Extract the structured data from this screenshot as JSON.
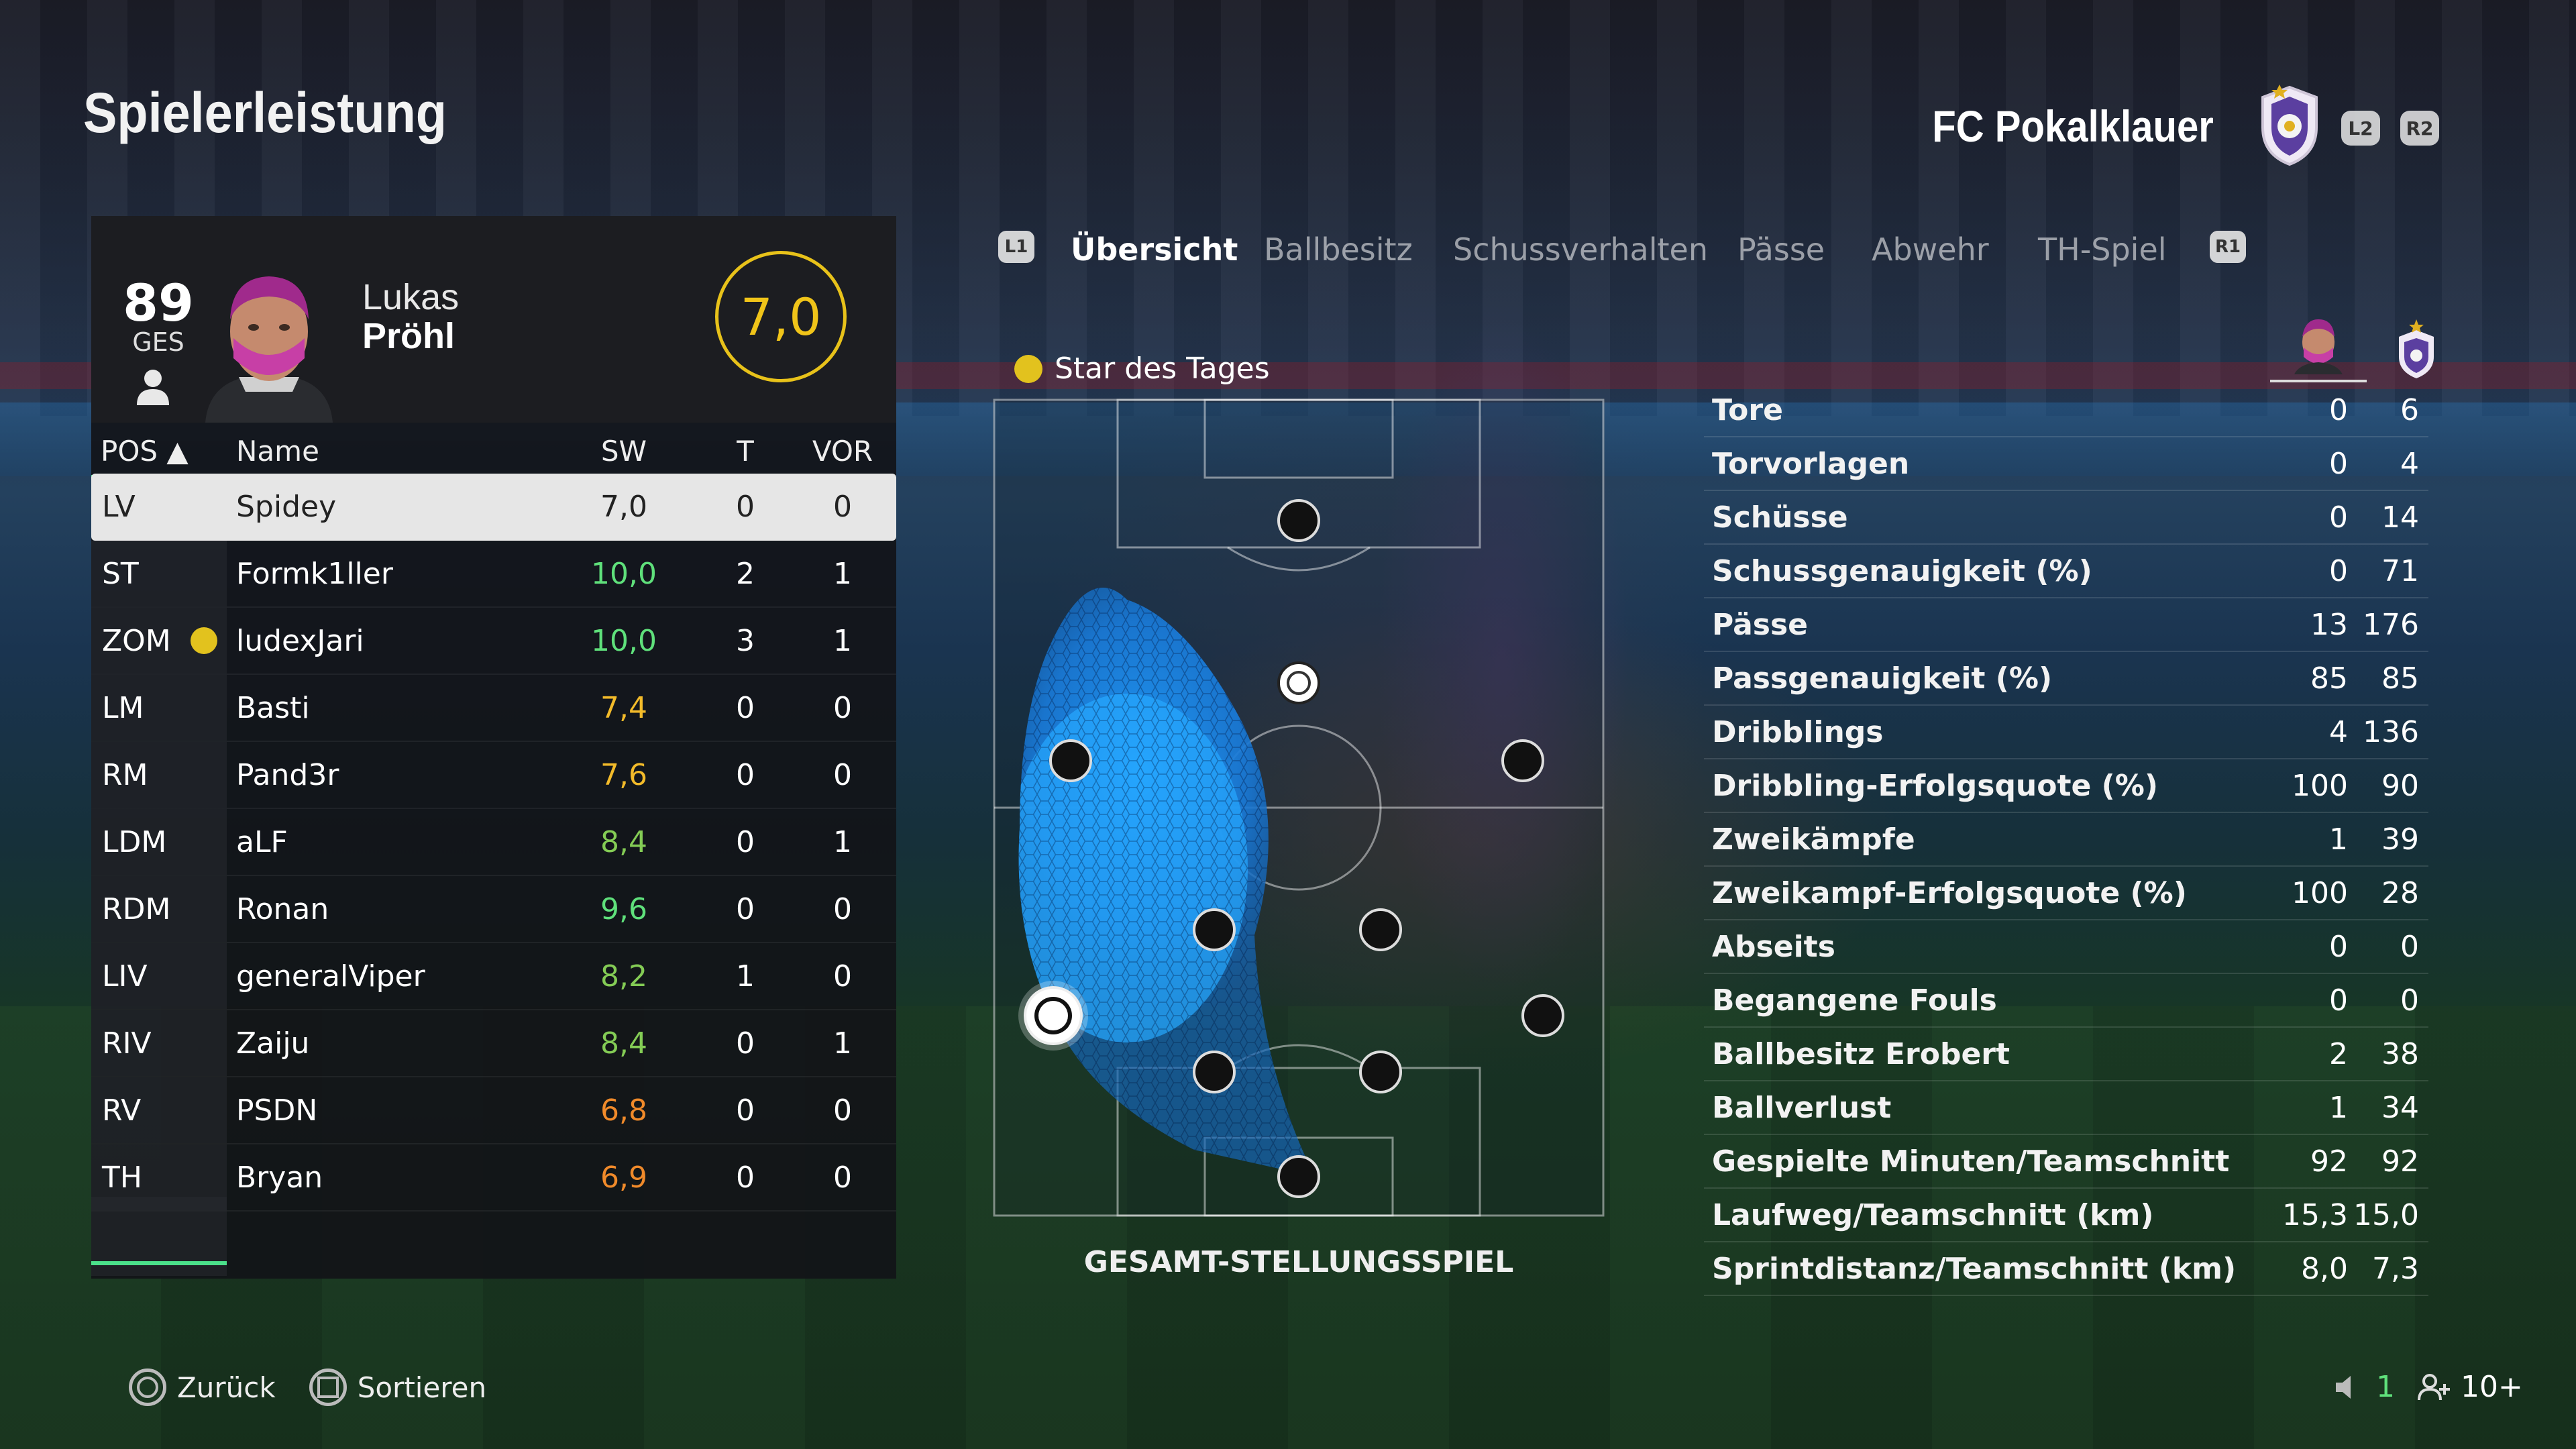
{
  "page_title": "Spielerleistung",
  "club": {
    "name": "FC Pokalklauer",
    "l2": "L2",
    "r2": "R2"
  },
  "player": {
    "overall": "89",
    "overall_label": "GES",
    "first_name": "Lukas",
    "last_name": "Pröhl",
    "match_rating": "7,0"
  },
  "table": {
    "headers": {
      "pos": "POS ▲",
      "name": "Name",
      "sw": "SW",
      "t": "T",
      "vor": "VOR"
    },
    "rows": [
      {
        "pos": "LV",
        "name": "Spidey",
        "sw": "7,0",
        "t": "0",
        "vor": "0",
        "color": "white",
        "selected": true
      },
      {
        "pos": "ST",
        "name": "Formk1ller",
        "sw": "10,0",
        "t": "2",
        "vor": "1",
        "color": "green"
      },
      {
        "pos": "ZOM",
        "name": "ludexJari",
        "sw": "10,0",
        "t": "3",
        "vor": "1",
        "color": "green",
        "star": true
      },
      {
        "pos": "LM",
        "name": "Basti",
        "sw": "7,4",
        "t": "0",
        "vor": "0",
        "color": "yellow"
      },
      {
        "pos": "RM",
        "name": "Pand3r",
        "sw": "7,6",
        "t": "0",
        "vor": "0",
        "color": "yellow"
      },
      {
        "pos": "LDM",
        "name": "aLF",
        "sw": "8,4",
        "t": "0",
        "vor": "1",
        "color": "lgreen"
      },
      {
        "pos": "RDM",
        "name": "Ronan",
        "sw": "9,6",
        "t": "0",
        "vor": "0",
        "color": "green"
      },
      {
        "pos": "LIV",
        "name": "generalViper",
        "sw": "8,2",
        "t": "1",
        "vor": "0",
        "color": "lgreen"
      },
      {
        "pos": "RIV",
        "name": "Zaiju",
        "sw": "8,4",
        "t": "0",
        "vor": "1",
        "color": "lgreen"
      },
      {
        "pos": "RV",
        "name": "PSDN",
        "sw": "6,8",
        "t": "0",
        "vor": "0",
        "color": "orange"
      },
      {
        "pos": "TH",
        "name": "Bryan",
        "sw": "6,9",
        "t": "0",
        "vor": "0",
        "color": "orange"
      }
    ]
  },
  "tabs": {
    "l1": "L1",
    "r1": "R1",
    "items": [
      "Übersicht",
      "Ballbesitz",
      "Schussverhalten",
      "Pässe",
      "Abwehr",
      "TH-Spiel"
    ],
    "active": 0
  },
  "star_of_day": "Star des Tages",
  "pitch_caption": "GESAMT-STELLUNGSSPIEL",
  "stats": [
    {
      "label": "Tore",
      "player": "0",
      "team": "6"
    },
    {
      "label": "Torvorlagen",
      "player": "0",
      "team": "4"
    },
    {
      "label": "Schüsse",
      "player": "0",
      "team": "14"
    },
    {
      "label": "Schussgenauigkeit (%)",
      "player": "0",
      "team": "71"
    },
    {
      "label": "Pässe",
      "player": "13",
      "team": "176"
    },
    {
      "label": "Passgenauigkeit (%)",
      "player": "85",
      "team": "85"
    },
    {
      "label": "Dribblings",
      "player": "4",
      "team": "136"
    },
    {
      "label": "Dribbling-Erfolgsquote (%)",
      "player": "100",
      "team": "90"
    },
    {
      "label": "Zweikämpfe",
      "player": "1",
      "team": "39"
    },
    {
      "label": "Zweikampf-Erfolgsquote (%)",
      "player": "100",
      "team": "28"
    },
    {
      "label": "Abseits",
      "player": "0",
      "team": "0"
    },
    {
      "label": "Begangene Fouls",
      "player": "0",
      "team": "0"
    },
    {
      "label": "Ballbesitz Erobert",
      "player": "2",
      "team": "38"
    },
    {
      "label": "Ballverlust",
      "player": "1",
      "team": "34"
    },
    {
      "label": "Gespielte Minuten/Teamschnitt",
      "player": "92",
      "team": "92"
    },
    {
      "label": "Laufweg/Teamschnitt (km)",
      "player": "15,3",
      "team": "15,0"
    },
    {
      "label": "Sprintdistanz/Teamschnitt (km)",
      "player": "8,0",
      "team": "7,3"
    }
  ],
  "footer": {
    "back_label": "Zurück",
    "sort_label": "Sortieren",
    "voice_count": "1",
    "party_count": "10+"
  },
  "colors": {
    "accent_green": "#4be08a",
    "rating_yellow": "#e8c21a",
    "heatmap_blue": "#1e90ff"
  }
}
